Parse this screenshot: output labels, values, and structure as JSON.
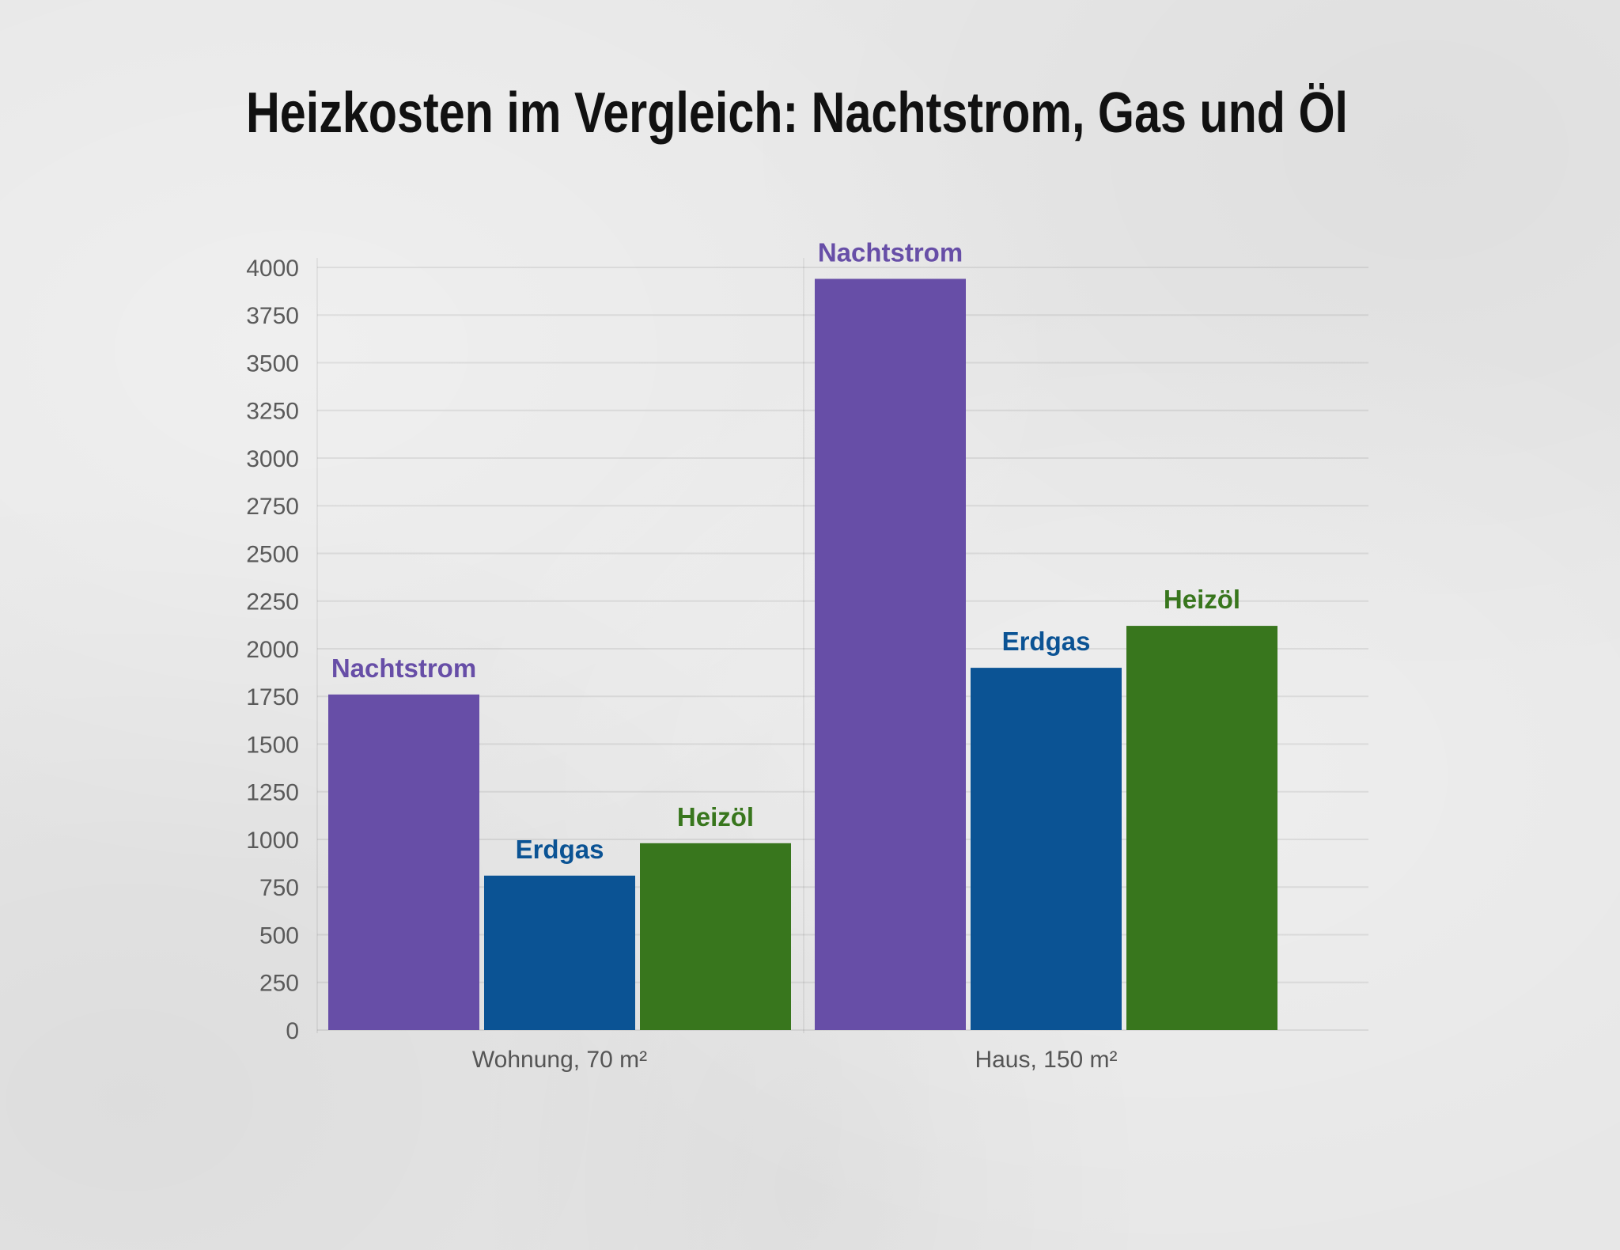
{
  "chart_data": {
    "type": "bar",
    "title": "Heizkosten im Vergleich: Nachtstrom, Gas und Öl",
    "categories": [
      "Wohnung, 70 m²",
      "Haus, 150 m²"
    ],
    "series": [
      {
        "name": "Nachtstrom",
        "values": [
          1760,
          3940
        ],
        "color": "#674ea7"
      },
      {
        "name": "Erdgas",
        "values": [
          810,
          1900
        ],
        "color": "#0b5394"
      },
      {
        "name": "Heizöl",
        "values": [
          980,
          2120
        ],
        "color": "#38761d"
      }
    ],
    "xlabel": "",
    "ylabel": "",
    "ylim": [
      0,
      4000
    ],
    "y_ticks": [
      0,
      250,
      500,
      750,
      1000,
      1250,
      1500,
      1750,
      2000,
      2250,
      2500,
      2750,
      3000,
      3250,
      3500,
      3750,
      4000
    ],
    "grid": true,
    "legend": "none"
  },
  "colors": {
    "background": "#e7e7e7",
    "title": "#111111",
    "axis_text": "#5a5a5a"
  }
}
